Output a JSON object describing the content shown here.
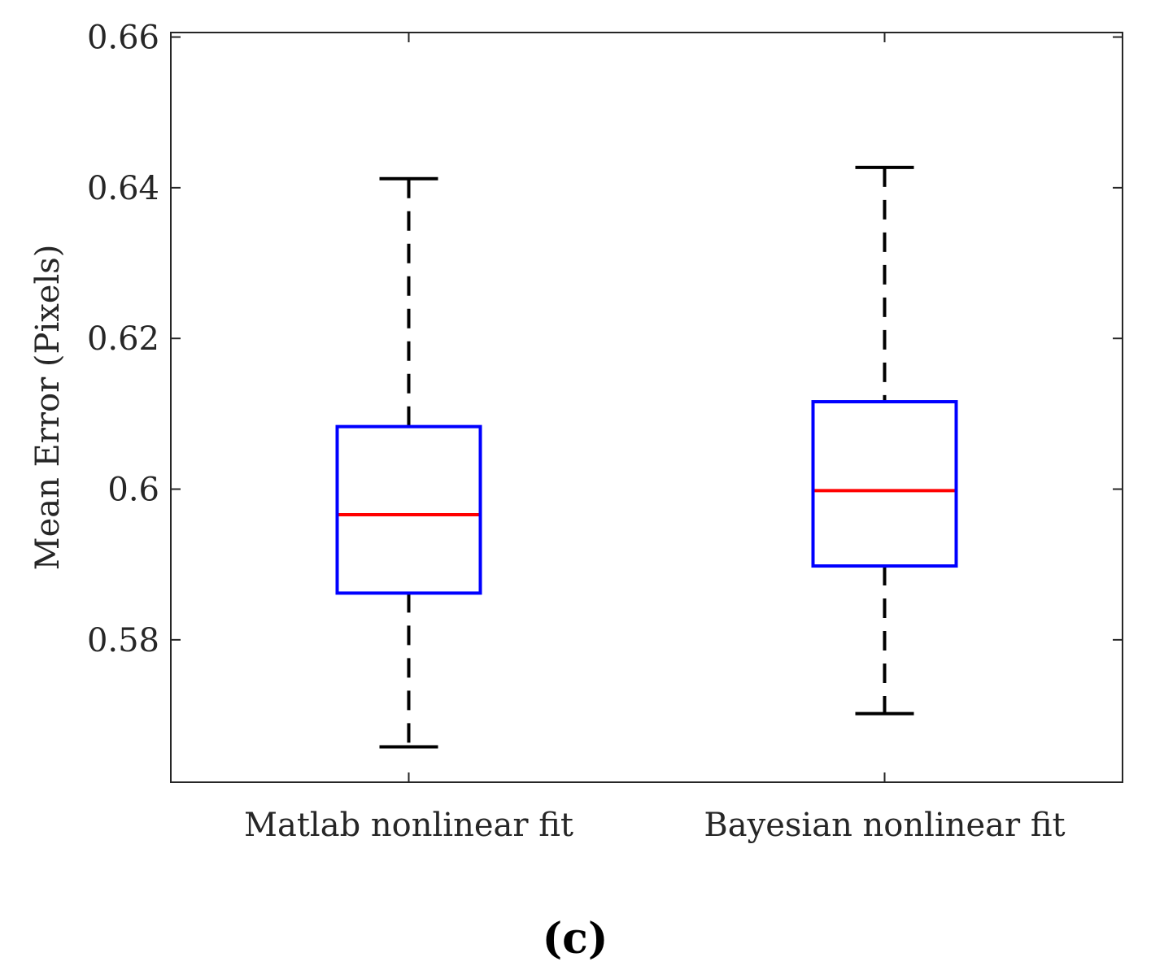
{
  "chart_data": {
    "type": "box",
    "categories": [
      "Matlab nonlinear fit",
      "Bayesian nonlinear fit"
    ],
    "boxes": [
      {
        "category": "Matlab nonlinear fit",
        "whisker_low": 0.5658,
        "q1": 0.5862,
        "median": 0.5966,
        "q3": 0.6083,
        "whisker_high": 0.6412
      },
      {
        "category": "Bayesian nonlinear fit",
        "whisker_low": 0.5702,
        "q1": 0.5898,
        "median": 0.5998,
        "q3": 0.6116,
        "whisker_high": 0.6427
      }
    ],
    "ylabel": "Mean Error (Pixels)",
    "xlabel": "",
    "ylim": [
      0.5611,
      0.6606
    ],
    "yticks": [
      0.58,
      0.6,
      0.62,
      0.64,
      0.66
    ],
    "ytick_labels": [
      "0.58",
      "0.6",
      "0.62",
      "0.64",
      "0.66"
    ],
    "grid": false,
    "panel_label": "(c)",
    "colors": {
      "box": "#0000ff",
      "median": "#ff0000",
      "whisker": "#000000",
      "axes": "#262626"
    }
  }
}
